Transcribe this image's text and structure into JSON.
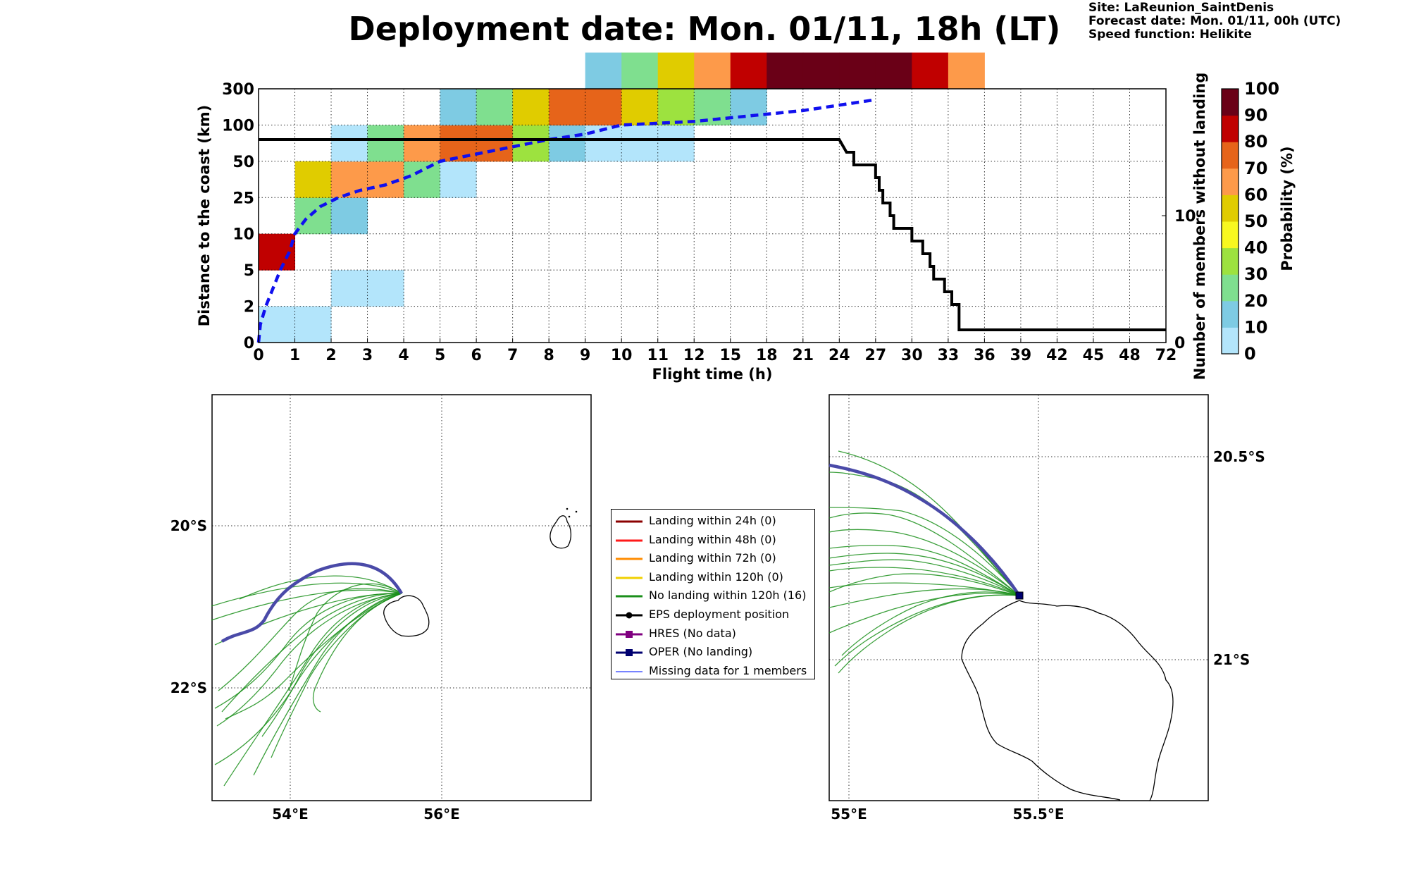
{
  "header": {
    "title": "Deployment date: Mon. 01/11, 18h (LT)",
    "site": "Site: LaReunion_SaintDenis",
    "forecast": "Forecast date: Mon. 01/11, 00h (UTC)",
    "speed": "Speed function: Helikite"
  },
  "chart_data": [
    {
      "type": "heatmap",
      "xlabel": "Flight time (h)",
      "ylabel": "Distance to the coast (km)",
      "ylabel_right": "Number of members without landing",
      "x_ticks": [
        "0",
        "1",
        "2",
        "3",
        "4",
        "5",
        "6",
        "7",
        "8",
        "9",
        "10",
        "11",
        "12",
        "15",
        "18",
        "21",
        "24",
        "27",
        "30",
        "33",
        "36",
        "39",
        "42",
        "45",
        "48",
        "72"
      ],
      "y_ticks": [
        "0",
        "2",
        "5",
        "10",
        "25",
        "50",
        "100",
        "300"
      ],
      "y2_ticks": [
        "0",
        "10"
      ],
      "y2_range": [
        0,
        20
      ],
      "grid": true,
      "colorbar": {
        "label": "Probability (%)",
        "ticks": [
          "0",
          "10",
          "20",
          "30",
          "40",
          "50",
          "60",
          "70",
          "80",
          "90",
          "100"
        ],
        "colors": [
          "#b3e5fb",
          "#7ecbe3",
          "#7fdf8f",
          "#9de23f",
          "#f8f820",
          "#e0cc00",
          "#fd9a4a",
          "#e6641a",
          "#c00000",
          "#6a0017"
        ]
      },
      "cells": [
        {
          "x": 0,
          "y": 0,
          "v": 5
        },
        {
          "x": 1,
          "y": 0,
          "v": 5
        },
        {
          "x": 0,
          "y": 2,
          "v": 85
        },
        {
          "x": 2,
          "y": 1,
          "v": 5
        },
        {
          "x": 3,
          "y": 1,
          "v": 5
        },
        {
          "x": 1,
          "y": 3,
          "v": 25
        },
        {
          "x": 2,
          "y": 3,
          "v": 15
        },
        {
          "x": 1,
          "y": 4,
          "v": 55
        },
        {
          "x": 2,
          "y": 4,
          "v": 65
        },
        {
          "x": 3,
          "y": 4,
          "v": 65
        },
        {
          "x": 4,
          "y": 4,
          "v": 25
        },
        {
          "x": 5,
          "y": 4,
          "v": 5
        },
        {
          "x": 2,
          "y": 5,
          "v": 5
        },
        {
          "x": 3,
          "y": 5,
          "v": 25
        },
        {
          "x": 4,
          "y": 5,
          "v": 65
        },
        {
          "x": 5,
          "y": 5,
          "v": 75
        },
        {
          "x": 6,
          "y": 5,
          "v": 75
        },
        {
          "x": 7,
          "y": 5,
          "v": 35
        },
        {
          "x": 8,
          "y": 5,
          "v": 15
        },
        {
          "x": 9,
          "y": 5,
          "v": 5
        },
        {
          "x": 10,
          "y": 5,
          "v": 5
        },
        {
          "x": 11,
          "y": 5,
          "v": 5
        },
        {
          "x": 5,
          "y": 6,
          "v": 15
        },
        {
          "x": 6,
          "y": 6,
          "v": 25
        },
        {
          "x": 7,
          "y": 6,
          "v": 55
        },
        {
          "x": 8,
          "y": 6,
          "v": 75
        },
        {
          "x": 9,
          "y": 6,
          "v": 75
        },
        {
          "x": 10,
          "y": 6,
          "v": 55
        },
        {
          "x": 11,
          "y": 6,
          "v": 35
        },
        {
          "x": 12,
          "y": 6,
          "v": 25
        },
        {
          "x": 13,
          "y": 6,
          "v": 15
        },
        {
          "x": 9,
          "y": 7,
          "v": 15
        },
        {
          "x": 10,
          "y": 7,
          "v": 25
        },
        {
          "x": 11,
          "y": 7,
          "v": 55
        },
        {
          "x": 12,
          "y": 7,
          "v": 65
        },
        {
          "x": 13,
          "y": 7,
          "v": 85
        },
        {
          "x": 14,
          "y": 7,
          "v": 95
        },
        {
          "x": 15,
          "y": 7,
          "v": 95
        },
        {
          "x": 16,
          "y": 7,
          "v": 95
        },
        {
          "x": 17,
          "y": 7,
          "v": 95
        },
        {
          "x": 18,
          "y": 7,
          "v": 85
        },
        {
          "x": 19,
          "y": 7,
          "v": 65
        }
      ],
      "median_distance_line": {
        "style": "dashed blue",
        "points": [
          [
            0,
            0
          ],
          [
            0.05,
            0.5
          ],
          [
            0.2,
            1
          ],
          [
            0.4,
            1.5
          ],
          [
            0.6,
            2
          ],
          [
            0.85,
            2.5
          ],
          [
            1,
            3
          ],
          [
            1.3,
            3.4
          ],
          [
            1.7,
            3.75
          ],
          [
            2.2,
            4
          ],
          [
            2.8,
            4.2
          ],
          [
            3.5,
            4.35
          ],
          [
            4.2,
            4.6
          ],
          [
            5,
            5
          ],
          [
            6,
            5.2
          ],
          [
            7,
            5.4
          ],
          [
            8,
            5.6
          ],
          [
            9,
            5.75
          ],
          [
            10,
            6
          ],
          [
            11,
            6.05
          ],
          [
            12,
            6.1
          ],
          [
            13,
            6.2
          ],
          [
            14,
            6.3
          ],
          [
            15,
            6.4
          ],
          [
            16,
            6.55
          ],
          [
            17,
            6.7
          ]
        ]
      },
      "members_without_landing": {
        "style": "black step",
        "points": [
          [
            0,
            16
          ],
          [
            16,
            16
          ],
          [
            16.2,
            15
          ],
          [
            16.4,
            15
          ],
          [
            16.4,
            14
          ],
          [
            17,
            14
          ],
          [
            17,
            13
          ],
          [
            17.1,
            13
          ],
          [
            17.1,
            12
          ],
          [
            17.2,
            12
          ],
          [
            17.2,
            11
          ],
          [
            17.4,
            11
          ],
          [
            17.4,
            10
          ],
          [
            17.5,
            10
          ],
          [
            17.5,
            9
          ],
          [
            18,
            9
          ],
          [
            18,
            8
          ],
          [
            18.3,
            8
          ],
          [
            18.3,
            7
          ],
          [
            18.5,
            7
          ],
          [
            18.5,
            6
          ],
          [
            18.6,
            6
          ],
          [
            18.6,
            5
          ],
          [
            18.9,
            5
          ],
          [
            18.9,
            4
          ],
          [
            19.1,
            4
          ],
          [
            19.1,
            3
          ],
          [
            19.3,
            3
          ],
          [
            19.3,
            1
          ],
          [
            25,
            1
          ]
        ]
      }
    }
  ],
  "maps": {
    "left": {
      "lon_labels": [
        "54°E",
        "56°E"
      ],
      "lat_labels": [
        "20°S",
        "22°S"
      ]
    },
    "right": {
      "lon_labels": [
        "55°E",
        "55.5°E"
      ],
      "lat_labels": [
        "20.5°S",
        "21°S"
      ]
    }
  },
  "legend": {
    "items": [
      {
        "label": "Landing within 24h (0)",
        "color": "#8b0000",
        "kind": "line"
      },
      {
        "label": "Landing within 48h (0)",
        "color": "#ff1a1a",
        "kind": "line"
      },
      {
        "label": "Landing within 72h (0)",
        "color": "#ff8c00",
        "kind": "line"
      },
      {
        "label": "Landing within 120h (0)",
        "color": "#f0d000",
        "kind": "line"
      },
      {
        "label": "No landing within 120h (16)",
        "color": "#1a8f1a",
        "kind": "line"
      },
      {
        "label": "EPS deployment position",
        "color": "#000000",
        "kind": "dot"
      },
      {
        "label": "HRES (No data)",
        "color": "#800080",
        "kind": "square"
      },
      {
        "label": "OPER (No landing)",
        "color": "#000070",
        "kind": "square"
      },
      {
        "label": "Missing data for 1 members",
        "color": "#4a5aff",
        "kind": "thin"
      }
    ]
  }
}
